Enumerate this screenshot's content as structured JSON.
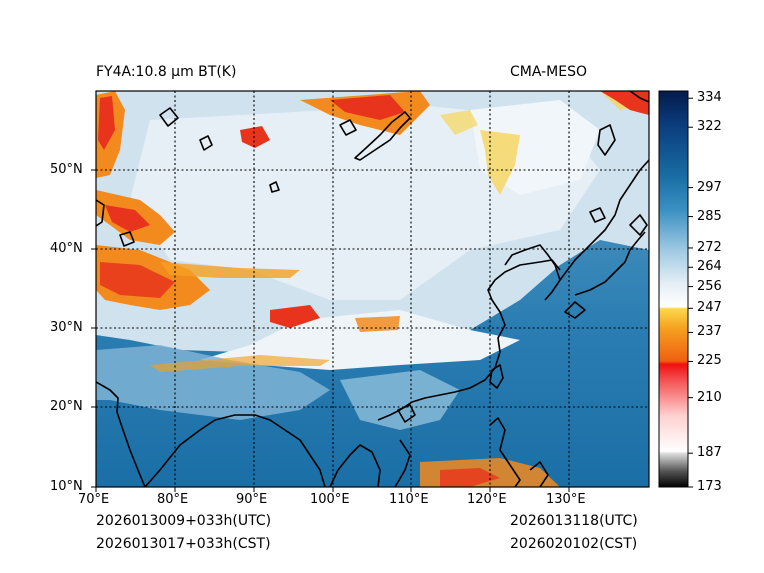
{
  "title_left": "FY4A:10.8 µm BT(K)",
  "title_right": "CMA-MESO",
  "footer": {
    "left_utc": "2026013009+033h(UTC)",
    "left_cst": "2026013017+033h(CST)",
    "right_utc": "2026013118(UTC)",
    "right_cst": "2026020102(CST)"
  },
  "map": {
    "lon_range": [
      70,
      140
    ],
    "lat_range": [
      10,
      60
    ],
    "lon_labels": [
      "70°E",
      "80°E",
      "90°E",
      "100°E",
      "110°E",
      "120°E",
      "130°E"
    ],
    "lat_labels": [
      "10°N",
      "20°N",
      "30°N",
      "40°N",
      "50°N"
    ]
  },
  "colorbar": {
    "range": [
      173,
      337
    ],
    "tick_values": [
      173,
      187,
      210,
      225,
      237,
      247,
      256,
      264,
      272,
      285,
      297,
      322,
      334
    ],
    "tick_labels": [
      "173",
      "187",
      "210",
      "225",
      "237",
      "247",
      "256",
      "264",
      "272",
      "285",
      "297",
      "322",
      "334"
    ]
  },
  "colors": {
    "ocean_blue": "#1a6fa6",
    "cloud_white": "#eef5fa",
    "cold_cloud_orange": "#f28a1e",
    "cold_cloud_red": "#e8341c",
    "coastline": "#000000"
  }
}
